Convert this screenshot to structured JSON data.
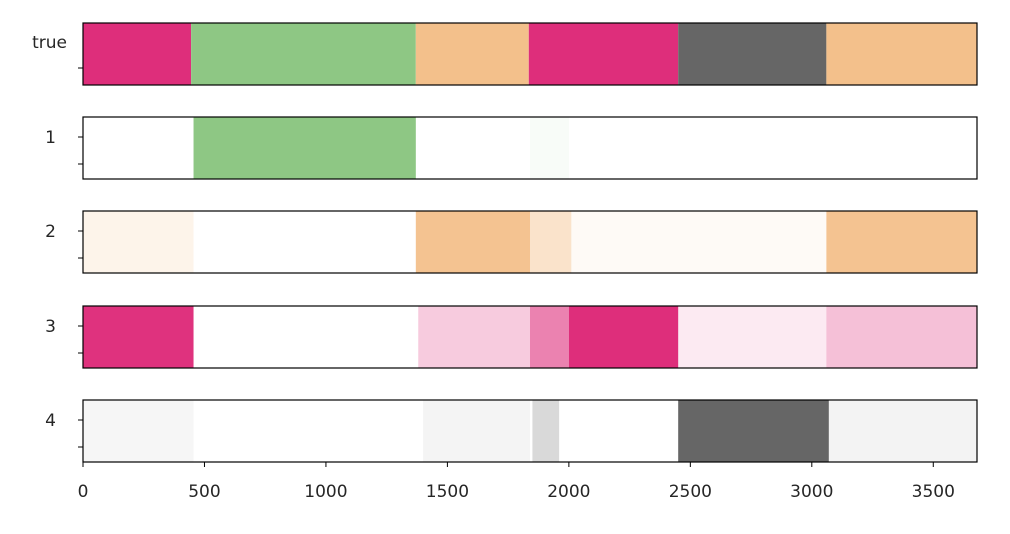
{
  "chart_data": {
    "type": "heatmap",
    "x_ticks": [
      0,
      500,
      1000,
      1500,
      2000,
      2500,
      3000,
      3500
    ],
    "xlim": [
      0,
      3680
    ],
    "colors": {
      "magenta": "#de2e7b",
      "green": "#8ec784",
      "orange": "#f3c08b",
      "gray": "#666666"
    },
    "rows": [
      {
        "label": "true",
        "segments": [
          {
            "start": 0,
            "end": 445,
            "color": "magenta"
          },
          {
            "start": 445,
            "end": 1370,
            "color": "green"
          },
          {
            "start": 1370,
            "end": 1835,
            "color": "orange"
          },
          {
            "start": 1835,
            "end": 2450,
            "color": "magenta"
          },
          {
            "start": 2450,
            "end": 3060,
            "color": "gray"
          },
          {
            "start": 3060,
            "end": 3680,
            "color": "orange"
          }
        ]
      },
      {
        "label": "1",
        "color": "green",
        "segments": [
          {
            "start": 455,
            "end": 1370,
            "opacity": 1.0
          },
          {
            "start": 1840,
            "end": 2000,
            "opacity": 0.06
          }
        ]
      },
      {
        "label": "2",
        "color": "orange",
        "segments": [
          {
            "start": 0,
            "end": 455,
            "opacity": 0.18
          },
          {
            "start": 1370,
            "end": 1840,
            "opacity": 0.95
          },
          {
            "start": 1840,
            "end": 2010,
            "opacity": 0.45
          },
          {
            "start": 2010,
            "end": 3060,
            "opacity": 0.08
          },
          {
            "start": 3060,
            "end": 3680,
            "opacity": 0.95
          }
        ]
      },
      {
        "label": "3",
        "color": "magenta",
        "segments": [
          {
            "start": 0,
            "end": 455,
            "opacity": 0.98
          },
          {
            "start": 1380,
            "end": 1840,
            "opacity": 0.25
          },
          {
            "start": 1840,
            "end": 2000,
            "opacity": 0.6
          },
          {
            "start": 2000,
            "end": 2450,
            "opacity": 1.0
          },
          {
            "start": 2450,
            "end": 3060,
            "opacity": 0.1
          },
          {
            "start": 3060,
            "end": 3680,
            "opacity": 0.3
          }
        ]
      },
      {
        "label": "4",
        "color": "gray",
        "segments": [
          {
            "start": 0,
            "end": 455,
            "opacity": 0.06
          },
          {
            "start": 1400,
            "end": 1840,
            "opacity": 0.07
          },
          {
            "start": 1850,
            "end": 1960,
            "opacity": 0.25
          },
          {
            "start": 2450,
            "end": 3070,
            "opacity": 1.0
          },
          {
            "start": 3070,
            "end": 3680,
            "opacity": 0.08
          }
        ]
      }
    ]
  }
}
